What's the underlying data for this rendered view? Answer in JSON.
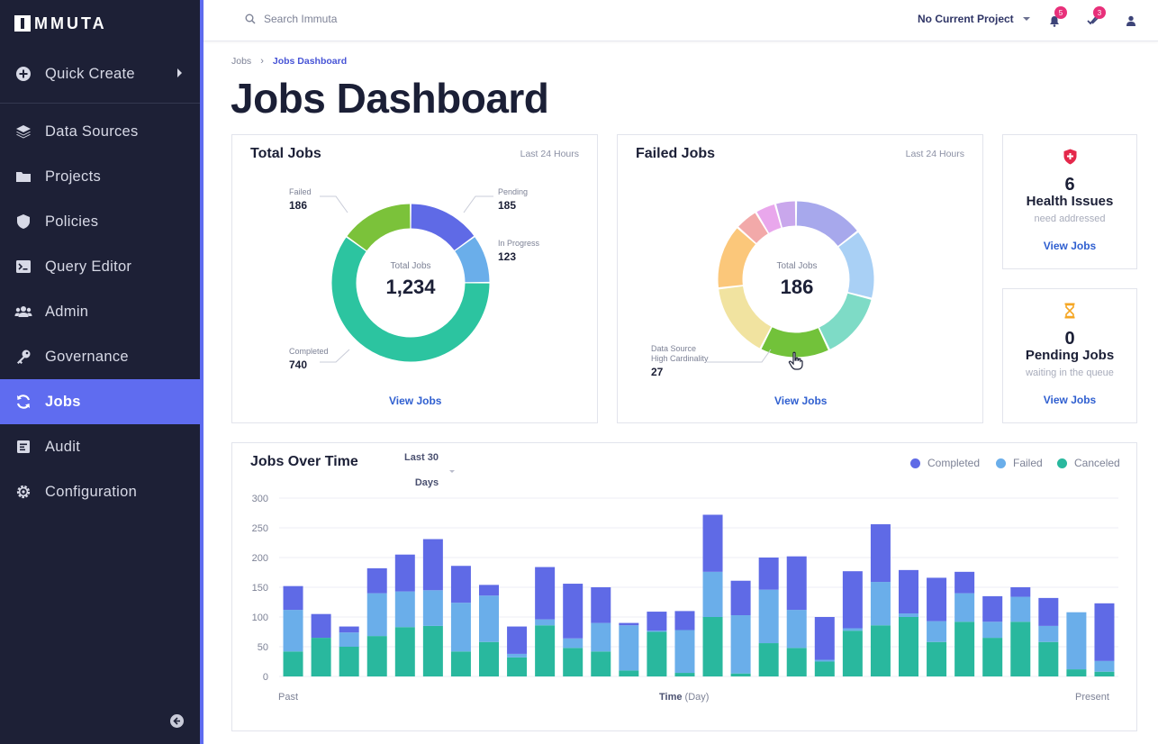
{
  "sidebar": {
    "logo": "MMUTA",
    "quick_create": "Quick Create",
    "items": [
      {
        "label": "Data Sources",
        "icon": "layers-icon"
      },
      {
        "label": "Projects",
        "icon": "folder-icon"
      },
      {
        "label": "Policies",
        "icon": "shield-icon"
      },
      {
        "label": "Query Editor",
        "icon": "terminal-icon"
      },
      {
        "label": "Admin",
        "icon": "users-icon"
      },
      {
        "label": "Governance",
        "icon": "key-icon"
      },
      {
        "label": "Jobs",
        "icon": "sync-icon",
        "active": true
      },
      {
        "label": "Audit",
        "icon": "audit-icon"
      },
      {
        "label": "Configuration",
        "icon": "gear-icon"
      }
    ]
  },
  "topbar": {
    "search_placeholder": "Search Immuta",
    "project": "No Current Project",
    "notifications_count": "5",
    "tasks_count": "3"
  },
  "breadcrumb": {
    "root": "Jobs",
    "separator": "›",
    "current": "Jobs Dashboard"
  },
  "page_title": "Jobs Dashboard",
  "total_jobs": {
    "title": "Total Jobs",
    "period": "Last 24 Hours",
    "center_caption": "Total Jobs",
    "center_value": "1,234",
    "view_jobs": "View Jobs",
    "segments": [
      {
        "label": "Pending",
        "value": 185,
        "display": "185",
        "color": "#5f6ae6"
      },
      {
        "label": "In Progress",
        "value": 123,
        "display": "123",
        "color": "#6aaeea"
      },
      {
        "label": "Completed",
        "value": 740,
        "display": "740",
        "color": "#2cc4a0"
      },
      {
        "label": "Failed",
        "value": 186,
        "display": "186",
        "color": "#7bc23a"
      }
    ]
  },
  "failed_jobs": {
    "title": "Failed Jobs",
    "period": "Last 24 Hours",
    "center_caption": "Total Jobs",
    "center_value": "186",
    "view_jobs": "View Jobs",
    "callout_label_1": "Data Source",
    "callout_label_2": "High Cardinality",
    "callout_value": "27",
    "segments": [
      {
        "value": 27,
        "color": "#a7a8ec"
      },
      {
        "value": 27,
        "color": "#a9d0f5"
      },
      {
        "value": 26,
        "color": "#7edbc6"
      },
      {
        "value": 27,
        "color": "#72c23a"
      },
      {
        "value": 29,
        "color": "#f1e3a0"
      },
      {
        "value": 25,
        "color": "#fbc77a"
      },
      {
        "value": 9,
        "color": "#f2a9a9"
      },
      {
        "value": 8,
        "color": "#e9a7ec"
      },
      {
        "value": 8,
        "color": "#c9a7ec"
      }
    ]
  },
  "health": {
    "count": "6",
    "label": "Health Issues",
    "sub": "need addressed",
    "view_jobs": "View Jobs"
  },
  "pending": {
    "count": "0",
    "label": "Pending Jobs",
    "sub": "waiting in the queue",
    "view_jobs": "View Jobs"
  },
  "jobs_over_time": {
    "title": "Jobs Over Time",
    "period_line1": "Last 30",
    "period_line2": "Days",
    "x_left": "Past",
    "x_right": "Present",
    "x_label_bold": "Time",
    "x_label_rest": " (Day)"
  },
  "chart_data": {
    "type": "bar",
    "stacked": true,
    "ylim": [
      0,
      300
    ],
    "yticks": [
      0,
      50,
      100,
      150,
      200,
      250,
      300
    ],
    "grid": true,
    "legend_position": "top-right",
    "series": [
      {
        "name": "Canceled",
        "color": "#29b89e",
        "values": [
          42,
          65,
          50,
          68,
          83,
          85,
          42,
          58,
          32,
          86,
          48,
          42,
          10,
          75,
          6,
          100,
          5,
          56,
          48,
          25,
          77,
          86,
          100,
          58,
          92,
          65,
          92,
          58,
          12,
          8
        ]
      },
      {
        "name": "Failed",
        "color": "#6aaeea",
        "values": [
          70,
          0,
          24,
          72,
          60,
          60,
          82,
          78,
          6,
          10,
          16,
          48,
          76,
          2,
          72,
          76,
          98,
          90,
          64,
          3,
          4,
          73,
          6,
          35,
          48,
          27,
          42,
          27,
          96,
          18
        ]
      },
      {
        "name": "Completed",
        "color": "#5f6ae6",
        "values": [
          40,
          40,
          10,
          42,
          62,
          86,
          62,
          18,
          46,
          88,
          92,
          60,
          4,
          32,
          32,
          96,
          58,
          54,
          90,
          72,
          96,
          97,
          73,
          73,
          36,
          43,
          16,
          47,
          0,
          97
        ]
      }
    ]
  }
}
